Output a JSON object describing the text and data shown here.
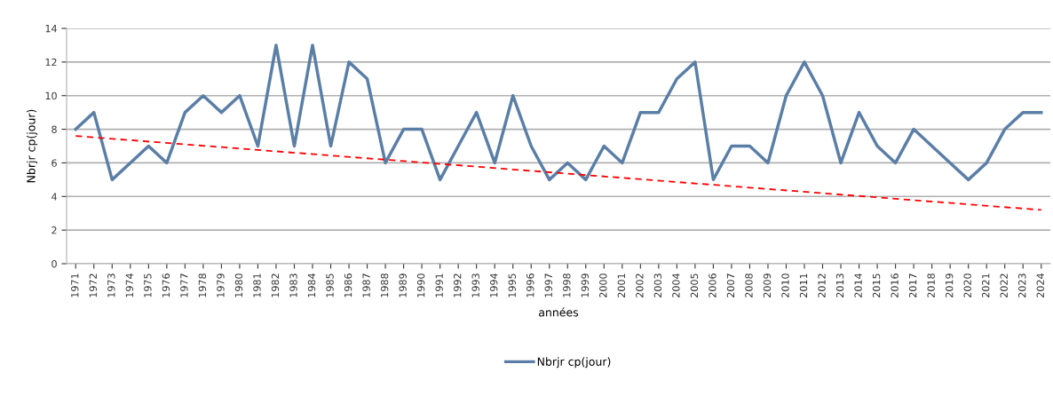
{
  "chart_data": {
    "type": "line",
    "xlabel": "années",
    "ylabel": "Nbrjr cp(jour)",
    "x": [
      1971,
      1972,
      1973,
      1974,
      1975,
      1976,
      1977,
      1978,
      1979,
      1980,
      1981,
      1982,
      1983,
      1984,
      1985,
      1986,
      1987,
      1988,
      1989,
      1990,
      1991,
      1992,
      1993,
      1994,
      1995,
      1996,
      1997,
      1998,
      1999,
      2000,
      2001,
      2002,
      2003,
      2004,
      2005,
      2006,
      2007,
      2008,
      2009,
      2010,
      2011,
      2012,
      2013,
      2014,
      2015,
      2016,
      2017,
      2018,
      2019,
      2020,
      2021,
      2022,
      2023,
      2024
    ],
    "series": [
      {
        "name": "Nbrjr cp(jour)",
        "color": "#5a7ea6",
        "values": [
          8,
          9,
          5,
          6,
          7,
          6,
          9,
          10,
          9,
          10,
          7,
          13,
          7,
          13,
          7,
          12,
          11,
          6,
          8,
          8,
          5,
          7,
          9,
          6,
          10,
          7,
          5,
          6,
          5,
          7,
          6,
          9,
          9,
          11,
          12,
          5,
          7,
          7,
          6,
          10,
          12,
          10,
          6,
          9,
          7,
          6,
          8,
          7,
          6,
          5,
          6,
          8,
          9,
          9
        ]
      },
      {
        "type": "line",
        "color": "#ff0000",
        "line_style": "dashed",
        "x": [
          1971,
          2024
        ],
        "values": [
          7.6,
          3.2
        ]
      }
    ],
    "xlim": [
      1970.5,
      2024.5
    ],
    "xticks": [
      1971,
      1972,
      1973,
      1974,
      1975,
      1976,
      1977,
      1978,
      1979,
      1980,
      1981,
      1982,
      1983,
      1984,
      1985,
      1986,
      1987,
      1988,
      1989,
      1990,
      1991,
      1992,
      1993,
      1994,
      1995,
      1996,
      1997,
      1998,
      1999,
      2000,
      2001,
      2002,
      2003,
      2004,
      2005,
      2006,
      2007,
      2008,
      2009,
      2010,
      2011,
      2012,
      2013,
      2014,
      2015,
      2016,
      2017,
      2018,
      2019,
      2020,
      2021,
      2022,
      2023,
      2024
    ],
    "ylim": [
      0,
      14
    ],
    "yticks": [
      0,
      2,
      4,
      6,
      8,
      10,
      12,
      14
    ],
    "grid": "y",
    "legend": "bottom",
    "marker": "none",
    "line_style": "solid"
  }
}
